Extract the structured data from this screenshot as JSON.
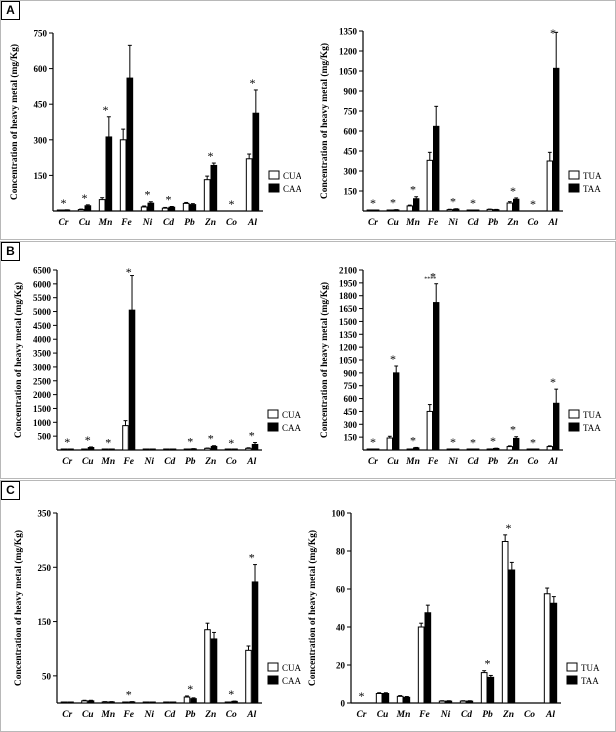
{
  "panels": [
    {
      "label": "A",
      "charts": [
        {
          "type": "bar",
          "categories": [
            "Cr",
            "Cu",
            "Mn",
            "Fe",
            "Ni",
            "Cd",
            "Pb",
            "Zn",
            "Co",
            "Al"
          ],
          "ylabel": "Concentration of heavy metal (mg/Kg)",
          "ylim": [
            0,
            750
          ],
          "yticks": [
            150,
            300,
            450,
            600,
            750
          ],
          "series": [
            {
              "name": "CUA",
              "fill": "open",
              "values": [
                2,
                6,
                48,
                300,
                17,
                12,
                32,
                132,
                0,
                220
              ],
              "errors": [
                0,
                2,
                8,
                45,
                4,
                3,
                4,
                15,
                0,
                20
              ]
            },
            {
              "name": "CAA",
              "fill": "filled",
              "values": [
                4,
                22,
                312,
                560,
                33,
                16,
                27,
                192,
                0,
                412
              ],
              "errors": [
                1,
                4,
                85,
                138,
                6,
                3,
                4,
                10,
                0,
                98
              ]
            }
          ],
          "significance": [
            {
              "category": "Cr",
              "symbol": "*"
            },
            {
              "category": "Cu",
              "symbol": "*"
            },
            {
              "category": "Mn",
              "symbol": "*"
            },
            {
              "category": "Ni",
              "symbol": "*"
            },
            {
              "category": "Cd",
              "symbol": "*"
            },
            {
              "category": "Zn",
              "symbol": "*"
            },
            {
              "category": "Co",
              "symbol": "*"
            },
            {
              "category": "Al",
              "symbol": "*"
            }
          ],
          "legend_position": "right"
        },
        {
          "type": "bar",
          "categories": [
            "Cr",
            "Cu",
            "Mn",
            "Fe",
            "Ni",
            "Cd",
            "Pb",
            "Zn",
            "Co",
            "Al"
          ],
          "ylabel": "Concentration of heavy metal (mg/Kg)",
          "ylim": [
            0,
            1350
          ],
          "yticks": [
            150,
            300,
            450,
            600,
            750,
            900,
            1050,
            1200,
            1350
          ],
          "series": [
            {
              "name": "TUA",
              "fill": "open",
              "values": [
                2,
                4,
                38,
                380,
                10,
                4,
                12,
                60,
                0,
                375
              ],
              "errors": [
                0,
                1,
                6,
                60,
                3,
                1,
                2,
                10,
                0,
                65
              ]
            },
            {
              "name": "TAA",
              "fill": "filled",
              "values": [
                3,
                8,
                92,
                635,
                14,
                6,
                10,
                88,
                0,
                1070
              ],
              "errors": [
                1,
                2,
                15,
                150,
                3,
                1,
                2,
                10,
                0,
                270
              ]
            }
          ],
          "significance": [
            {
              "category": "Cr",
              "symbol": "*"
            },
            {
              "category": "Cu",
              "symbol": "*"
            },
            {
              "category": "Mn",
              "symbol": "*"
            },
            {
              "category": "Ni",
              "symbol": "*"
            },
            {
              "category": "Cd",
              "symbol": "*"
            },
            {
              "category": "Zn",
              "symbol": "*"
            },
            {
              "category": "Co",
              "symbol": "*"
            },
            {
              "category": "Al",
              "symbol": "*"
            }
          ],
          "legend_position": "right"
        }
      ]
    },
    {
      "label": "B",
      "charts": [
        {
          "type": "bar",
          "categories": [
            "Cr",
            "Cu",
            "Mn",
            "Fe",
            "Ni",
            "Cd",
            "Pb",
            "Zn",
            "Co",
            "Al"
          ],
          "ylabel": "Concentration of heavy metal (mg/Kg)",
          "ylim": [
            0,
            6500
          ],
          "yticks": [
            500,
            1000,
            1500,
            2000,
            2500,
            3000,
            3500,
            4000,
            4500,
            5000,
            5500,
            6000,
            6500
          ],
          "series": [
            {
              "name": "CUA",
              "fill": "open",
              "values": [
                2,
                20,
                5,
                880,
                4,
                3,
                15,
                60,
                2,
                60
              ],
              "errors": [
                0,
                5,
                2,
                180,
                1,
                1,
                4,
                10,
                1,
                20
              ]
            },
            {
              "name": "CAA",
              "fill": "filled",
              "values": [
                4,
                90,
                12,
                5050,
                6,
                4,
                40,
                130,
                5,
                200
              ],
              "errors": [
                1,
                20,
                3,
                1250,
                2,
                1,
                8,
                25,
                1,
                70
              ]
            }
          ],
          "significance": [
            {
              "category": "Cr",
              "symbol": "*"
            },
            {
              "category": "Cu",
              "symbol": "*"
            },
            {
              "category": "Mn",
              "symbol": "*"
            },
            {
              "category": "Fe",
              "symbol": "*"
            },
            {
              "category": "Pb",
              "symbol": "*"
            },
            {
              "category": "Zn",
              "symbol": "*"
            },
            {
              "category": "Co",
              "symbol": "*"
            },
            {
              "category": "Al",
              "symbol": "*"
            }
          ],
          "legend_position": "right"
        },
        {
          "type": "bar",
          "categories": [
            "Cr",
            "Cu",
            "Mn",
            "Fe",
            "Ni",
            "Cd",
            "Pb",
            "Zn",
            "Co",
            "Al"
          ],
          "ylabel": "Concentration of heavy metal (mg/Kg)",
          "ylim": [
            0,
            2100
          ],
          "yticks": [
            150,
            300,
            450,
            600,
            750,
            900,
            1050,
            1200,
            1350,
            1500,
            1650,
            1800,
            1950,
            2100
          ],
          "series": [
            {
              "name": "TUA",
              "fill": "open",
              "values": [
                2,
                140,
                8,
                450,
                5,
                3,
                10,
                40,
                3,
                40
              ],
              "errors": [
                0,
                20,
                2,
                80,
                1,
                1,
                2,
                8,
                1,
                8
              ]
            },
            {
              "name": "TAA",
              "fill": "filled",
              "values": [
                3,
                900,
                25,
                1720,
                8,
                5,
                18,
                135,
                6,
                545
              ],
              "errors": [
                1,
                80,
                5,
                220,
                2,
                1,
                3,
                20,
                1,
                165
              ]
            }
          ],
          "significance": [
            {
              "category": "Cr",
              "symbol": "*"
            },
            {
              "category": "Cu",
              "symbol": "*"
            },
            {
              "category": "Mn",
              "symbol": "*"
            },
            {
              "category": "Fe",
              "symbol": "*"
            },
            {
              "category": "Fe",
              "symbol": "****"
            },
            {
              "category": "Ni",
              "symbol": "*"
            },
            {
              "category": "Cd",
              "symbol": "*"
            },
            {
              "category": "Pb",
              "symbol": "*"
            },
            {
              "category": "Zn",
              "symbol": "*"
            },
            {
              "category": "Co",
              "symbol": "*"
            },
            {
              "category": "Al",
              "symbol": "*"
            }
          ],
          "legend_position": "right"
        }
      ]
    },
    {
      "label": "C",
      "charts": [
        {
          "type": "bar",
          "categories": [
            "Cr",
            "Cu",
            "Mn",
            "Fe",
            "Ni",
            "Cd",
            "Pb",
            "Zn",
            "Co",
            "Al"
          ],
          "ylabel": "Concentration of heavy metal (mg/Kg)",
          "ylim": [
            0,
            350
          ],
          "yticks": [
            50,
            150,
            250,
            350
          ],
          "series": [
            {
              "name": "CUA",
              "fill": "open",
              "values": [
                0.5,
                4,
                2,
                1,
                1,
                1,
                11,
                135,
                1,
                97
              ],
              "errors": [
                0,
                1,
                0.5,
                0.3,
                0.3,
                0.3,
                2,
                12,
                0.3,
                8
              ]
            },
            {
              "name": "CAA",
              "fill": "filled",
              "values": [
                0.5,
                4,
                2,
                2,
                1,
                1,
                8,
                118,
                3,
                223
              ],
              "errors": [
                0,
                1,
                0.5,
                0.5,
                0.3,
                0.3,
                1.5,
                12,
                0.5,
                32
              ]
            }
          ],
          "significance": [
            {
              "category": "Fe",
              "symbol": "*"
            },
            {
              "category": "Pb",
              "symbol": "*"
            },
            {
              "category": "Co",
              "symbol": "*"
            },
            {
              "category": "Al",
              "symbol": "*"
            }
          ],
          "legend_position": "right"
        },
        {
          "type": "bar",
          "categories": [
            "Cr",
            "Cu",
            "Mn",
            "Fe",
            "Ni",
            "Cd",
            "Pb",
            "Zn",
            "Co",
            "Al"
          ],
          "ylabel": "Concentration of heavy metal (mg/Kg)",
          "ylim": [
            0,
            100
          ],
          "yticks": [
            0,
            20,
            40,
            60,
            80,
            100
          ],
          "series": [
            {
              "name": "TUA",
              "fill": "open",
              "values": [
                0,
                5,
                3.5,
                40,
                1,
                1,
                16,
                85,
                0,
                57.5
              ],
              "errors": [
                0,
                0.4,
                0.4,
                2,
                0.2,
                0.2,
                1,
                3.5,
                0,
                3
              ]
            },
            {
              "name": "TAA",
              "fill": "filled",
              "values": [
                0,
                5,
                3,
                47.5,
                1,
                1,
                13.5,
                70,
                0,
                52.5
              ],
              "errors": [
                0,
                0.4,
                0.4,
                4,
                0.2,
                0.2,
                1,
                4,
                0,
                3.5
              ]
            }
          ],
          "significance": [
            {
              "category": "Cr",
              "symbol": "*"
            },
            {
              "category": "Pb",
              "symbol": "*"
            },
            {
              "category": "Zn",
              "symbol": "*"
            }
          ],
          "legend_position": "right"
        }
      ]
    }
  ]
}
